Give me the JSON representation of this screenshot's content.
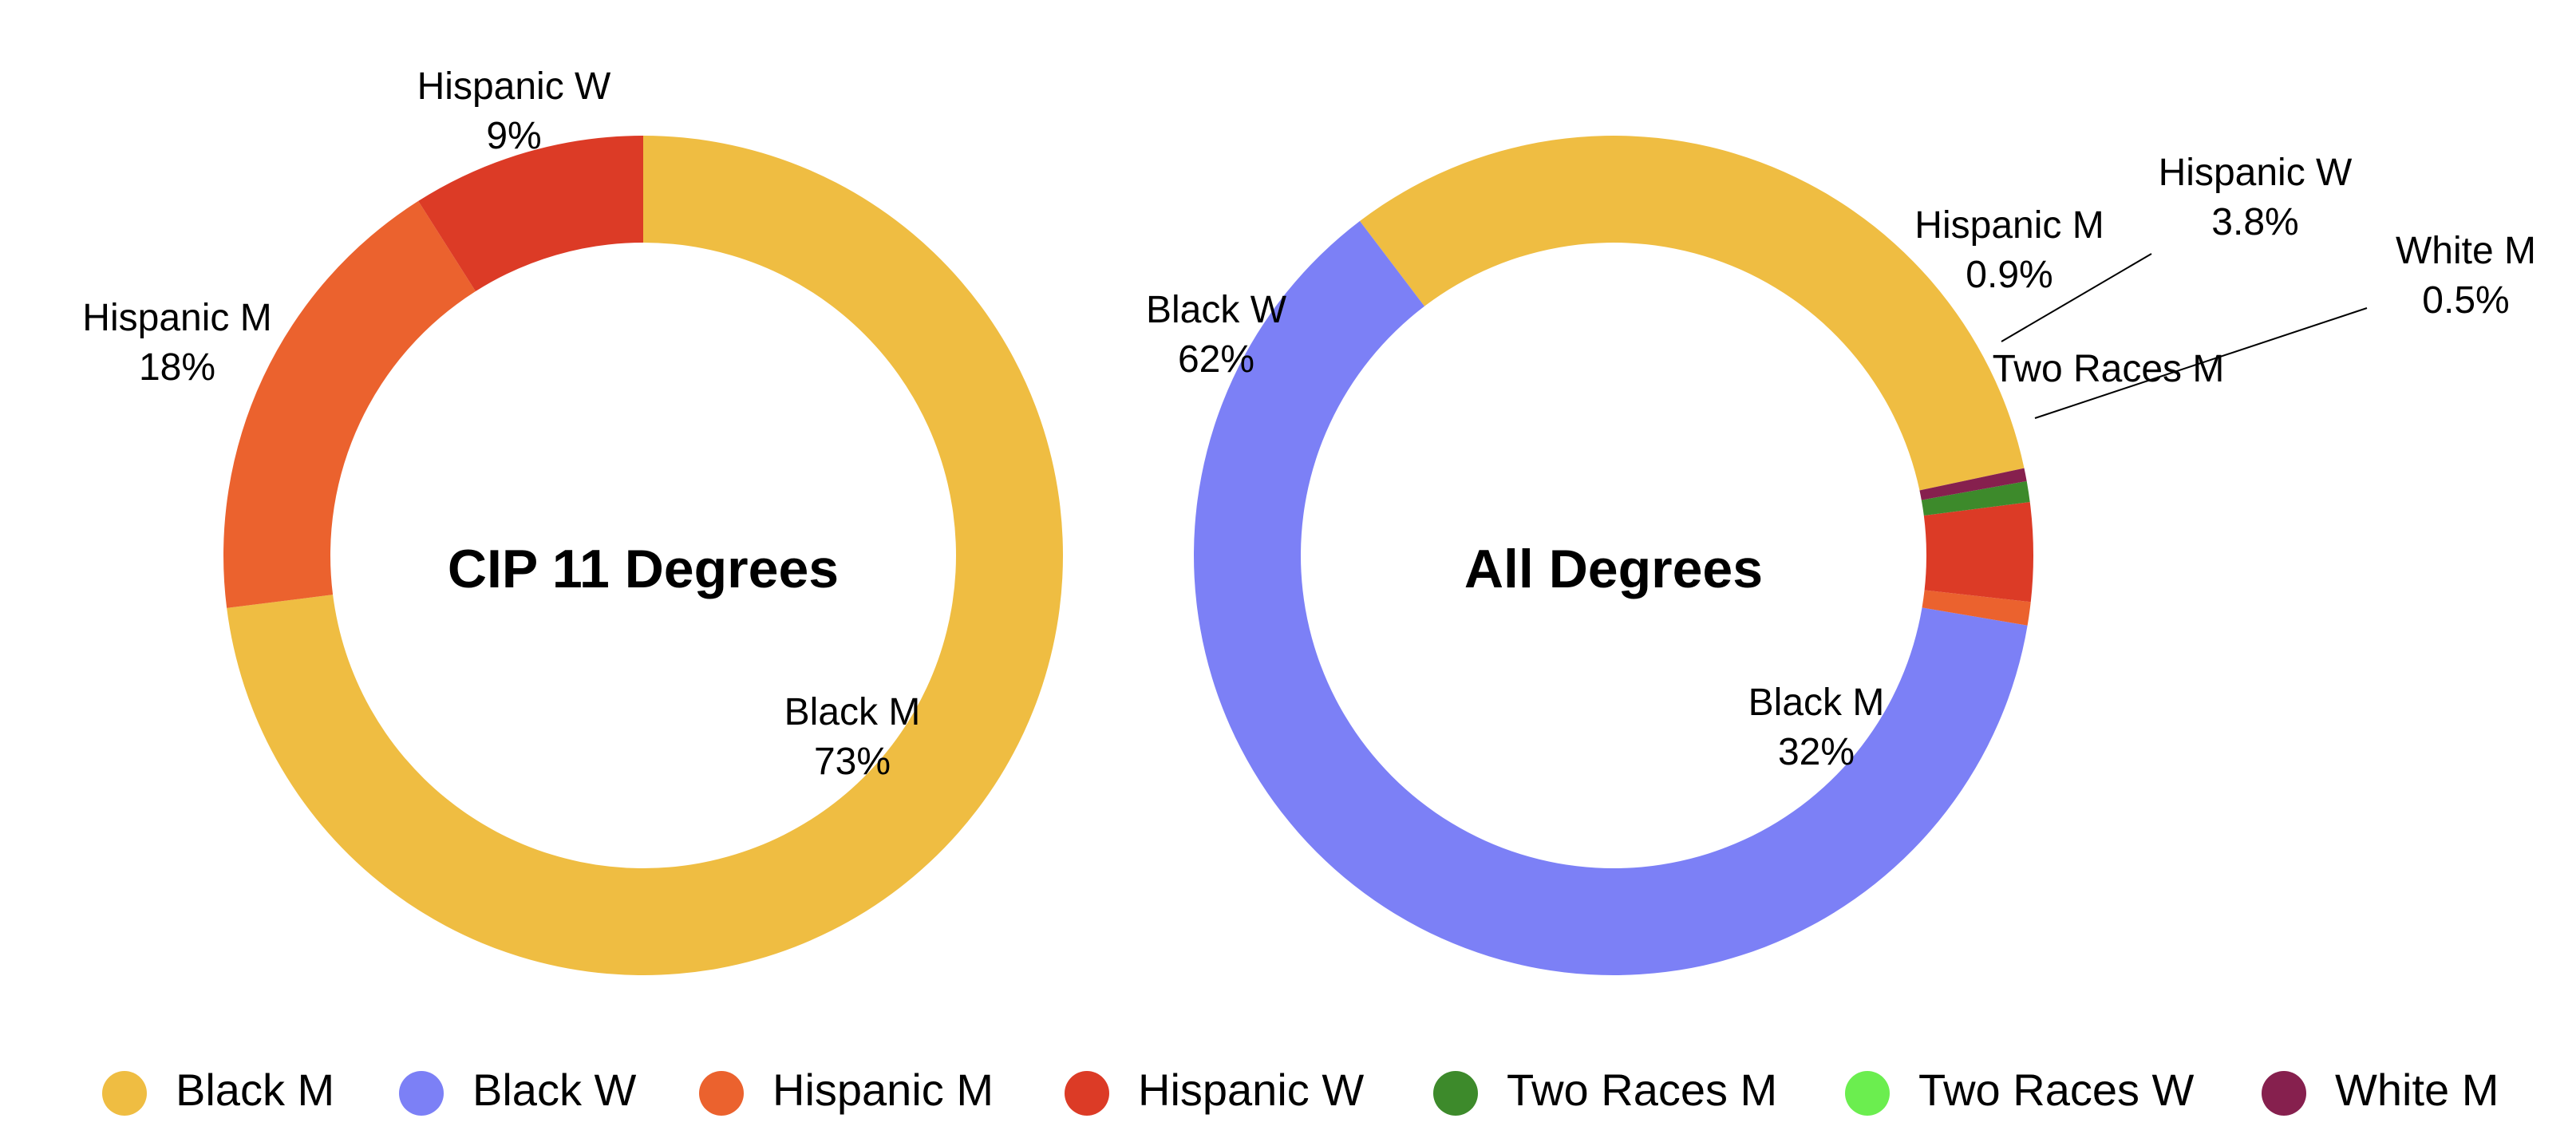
{
  "colors": {
    "Black M": "#EFBD42",
    "Black W": "#7C80F6",
    "Hispanic M": "#EB622E",
    "Hispanic W": "#DC3B26",
    "Two Races M": "#3D8A2B",
    "Two Races W": "#6BEE4F",
    "White M": "#86204E"
  },
  "chart_data": [
    {
      "type": "pie",
      "style": "donut",
      "center_title": "CIP 11 Degrees",
      "slices": [
        {
          "name": "Black M",
          "value": 73,
          "label": "73%"
        },
        {
          "name": "Hispanic M",
          "value": 18,
          "label": "18%"
        },
        {
          "name": "Hispanic W",
          "value": 9,
          "label": "9%"
        }
      ]
    },
    {
      "type": "pie",
      "style": "donut",
      "center_title": "All Degrees",
      "slices": [
        {
          "name": "Black M",
          "value": 32,
          "label": "32%"
        },
        {
          "name": "Black W",
          "value": 62,
          "label": "62%"
        },
        {
          "name": "Hispanic M",
          "value": 0.9,
          "label": "0.9%"
        },
        {
          "name": "Hispanic W",
          "value": 3.8,
          "label": "3.8%"
        },
        {
          "name": "Two Races M",
          "value": 0.8,
          "label": ""
        },
        {
          "name": "White M",
          "value": 0.5,
          "label": "0.5%"
        }
      ],
      "extra_labels": [
        "Two Races M"
      ]
    }
  ],
  "legend": {
    "placement": "bottom",
    "items": [
      "Black M",
      "Black W",
      "Hispanic M",
      "Hispanic W",
      "Two Races M",
      "Two Races W",
      "White M"
    ]
  }
}
